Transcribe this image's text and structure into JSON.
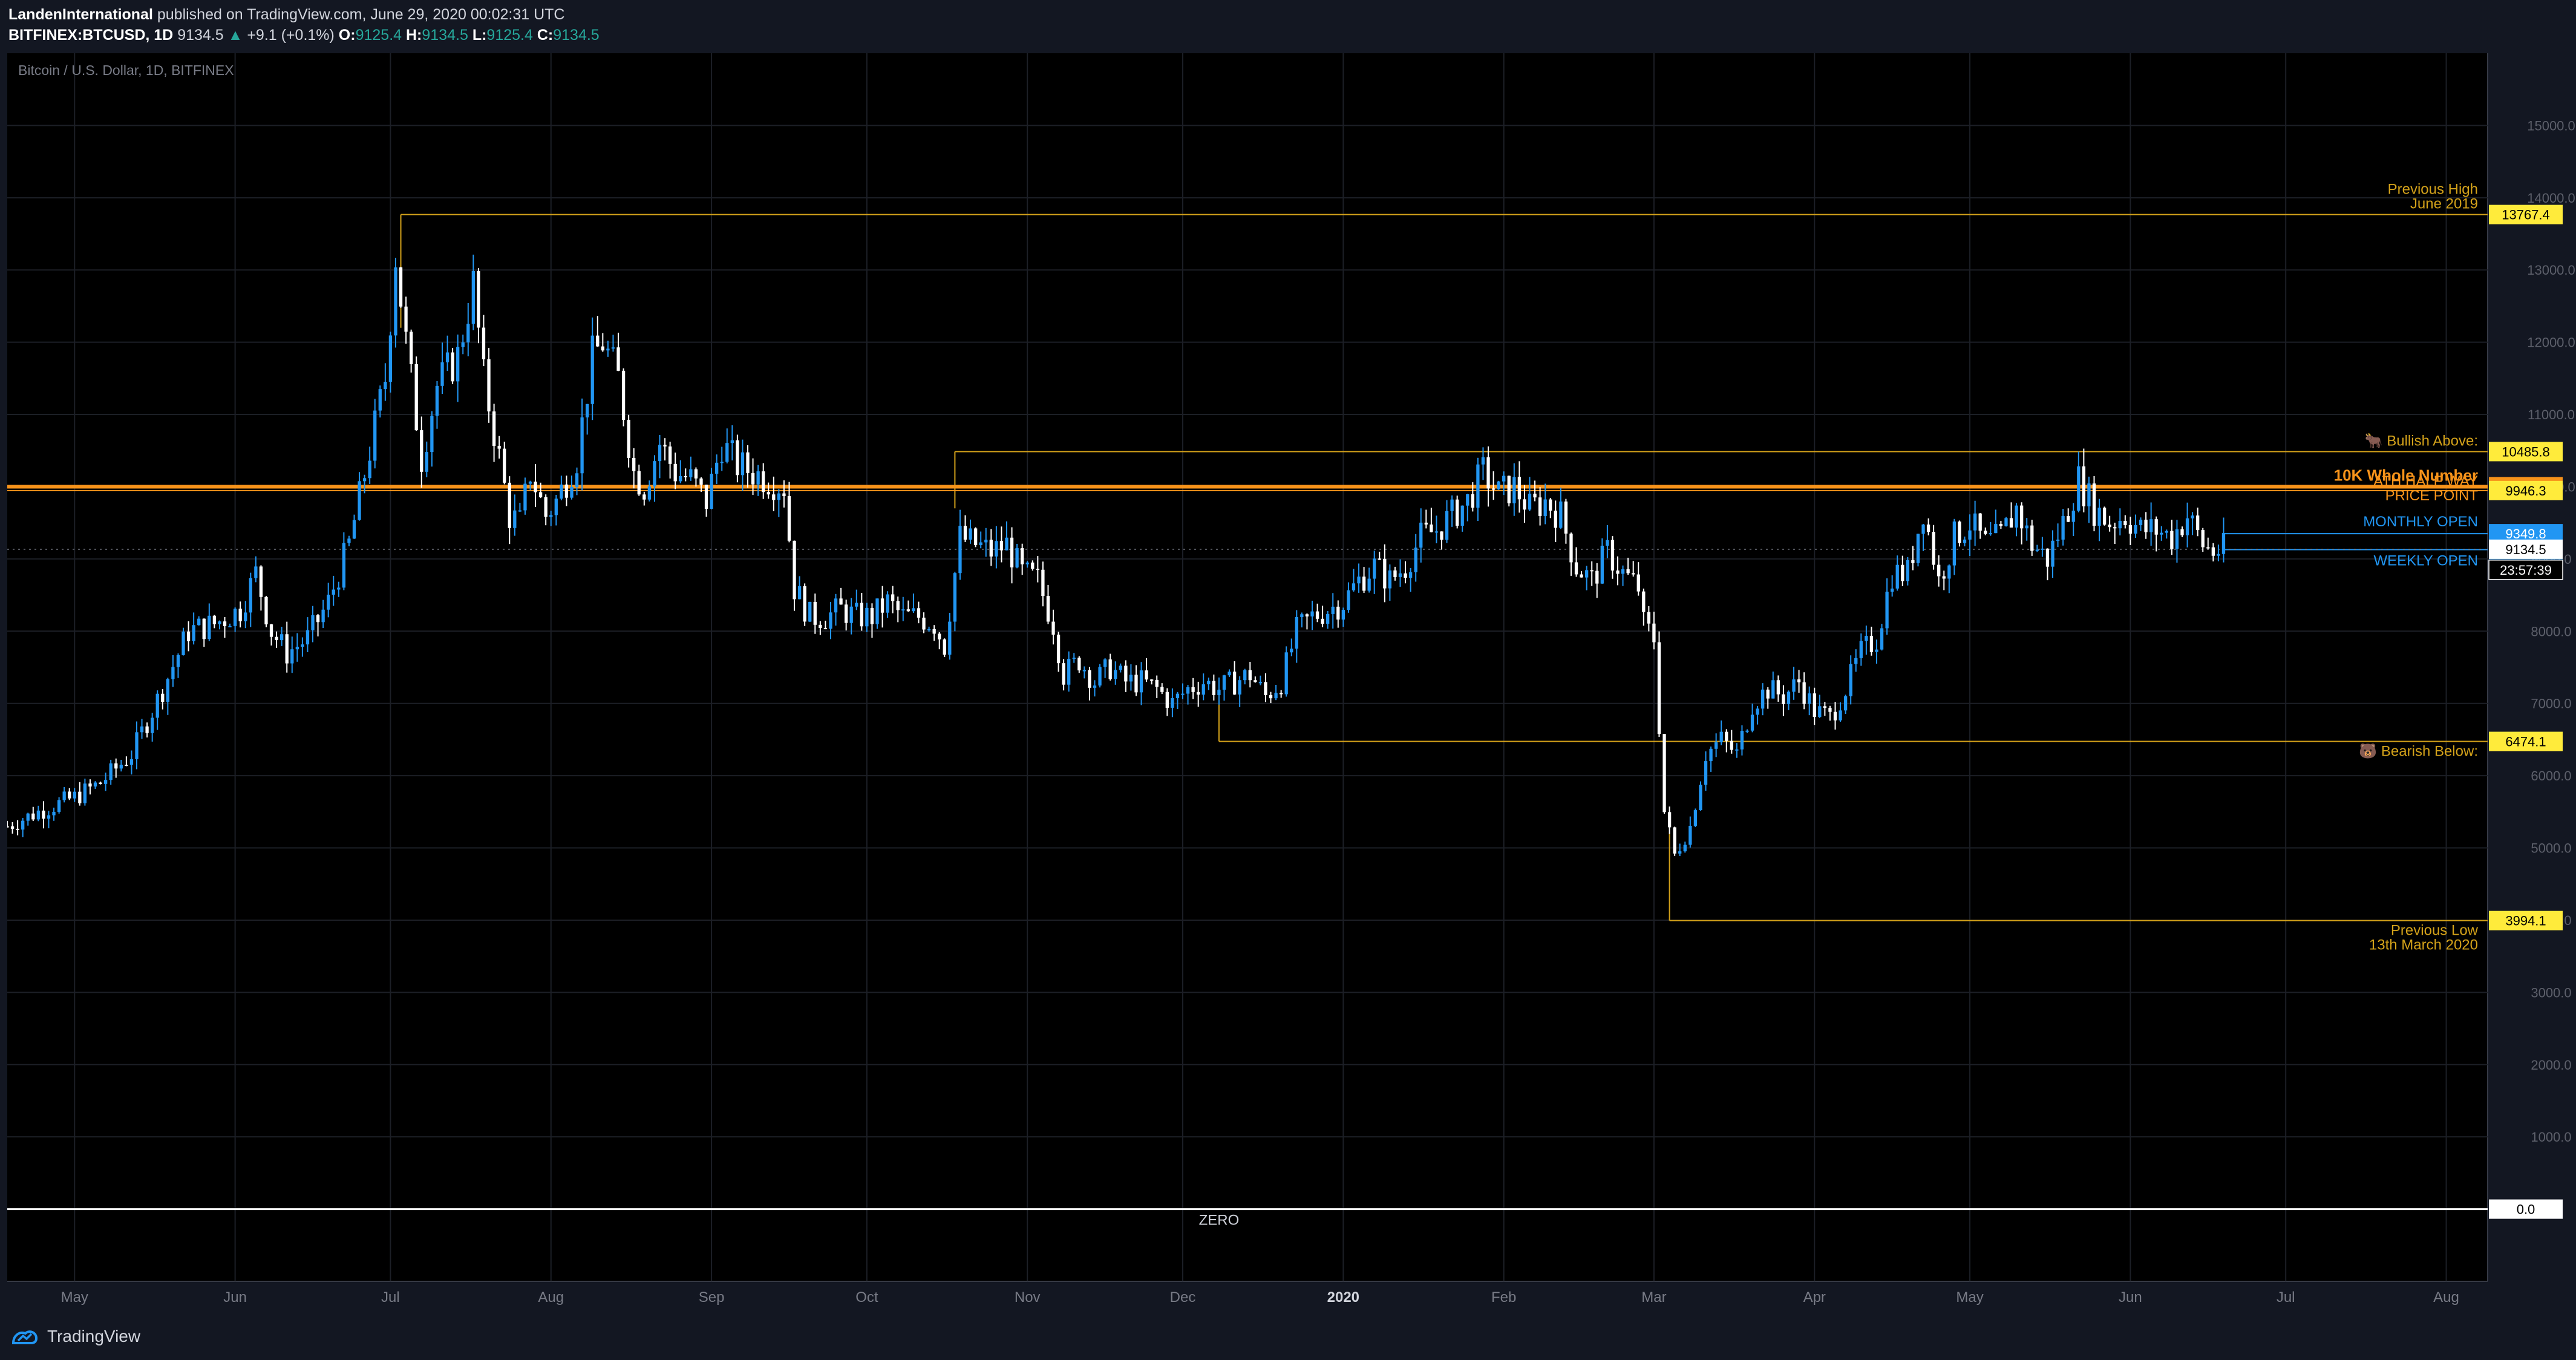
{
  "header": {
    "author": "LandenInternational",
    "published": "published on TradingView.com, June 29, 2020 00:02:31 UTC",
    "symbol": "BITFINEX:BTCUSD, 1D",
    "last": "9134.5",
    "change": "+9.1 (+0.1%)",
    "o_label": "O:",
    "o_val": "9125.4",
    "h_label": "H:",
    "h_val": "9134.5",
    "l_label": "L:",
    "l_val": "9125.4",
    "c_label": "C:",
    "c_val": "9134.5"
  },
  "footer": {
    "brand": "TradingView"
  },
  "chart_data": {
    "type": "candlestick",
    "title": "Bitcoin / U.S. Dollar, 1D, BITFINEX",
    "ylim": [
      -1000,
      16000
    ],
    "y_ticks": [
      "1000.0",
      "2000.0",
      "3000.0",
      "4000.0",
      "5000.0",
      "6000.0",
      "7000.0",
      "8000.0",
      "9000.0",
      "10000.0",
      "11000.0",
      "12000.0",
      "13000.0",
      "14000.0",
      "15000.0"
    ],
    "x_ticks": [
      {
        "label": "May",
        "day": 25
      },
      {
        "label": "Jun",
        "day": 56
      },
      {
        "label": "Jul",
        "day": 86
      },
      {
        "label": "Aug",
        "day": 117
      },
      {
        "label": "Sep",
        "day": 148
      },
      {
        "label": "Oct",
        "day": 178
      },
      {
        "label": "Nov",
        "day": 209
      },
      {
        "label": "Dec",
        "day": 239
      },
      {
        "label": "2020",
        "day": 270
      },
      {
        "label": "Feb",
        "day": 301
      },
      {
        "label": "Mar",
        "day": 330
      },
      {
        "label": "Apr",
        "day": 361
      },
      {
        "label": "May",
        "day": 391
      },
      {
        "label": "Jun",
        "day": 422
      },
      {
        "label": "Jul",
        "day": 452
      },
      {
        "label": "Aug",
        "day": 483
      }
    ],
    "x_range": [
      12,
      491
    ],
    "price_path": [
      [
        12,
        5300
      ],
      [
        18,
        5500
      ],
      [
        25,
        5700
      ],
      [
        30,
        5900
      ],
      [
        36,
        6300
      ],
      [
        42,
        7200
      ],
      [
        47,
        8000
      ],
      [
        52,
        8100
      ],
      [
        57,
        8300
      ],
      [
        60,
        8800
      ],
      [
        63,
        8000
      ],
      [
        66,
        7700
      ],
      [
        70,
        7900
      ],
      [
        74,
        8400
      ],
      [
        78,
        9200
      ],
      [
        82,
        10500
      ],
      [
        85,
        11500
      ],
      [
        87,
        13200
      ],
      [
        89,
        12000
      ],
      [
        92,
        10400
      ],
      [
        95,
        11400
      ],
      [
        99,
        11800
      ],
      [
        102,
        12800
      ],
      [
        104,
        11500
      ],
      [
        107,
        10400
      ],
      [
        109,
        9600
      ],
      [
        111,
        9500
      ],
      [
        113,
        10200
      ],
      [
        116,
        9600
      ],
      [
        118,
        9800
      ],
      [
        122,
        10400
      ],
      [
        125,
        11800
      ],
      [
        127,
        12000
      ],
      [
        130,
        11500
      ],
      [
        133,
        10200
      ],
      [
        135,
        10000
      ],
      [
        138,
        10600
      ],
      [
        141,
        10200
      ],
      [
        144,
        10100
      ],
      [
        147,
        9800
      ],
      [
        150,
        10600
      ],
      [
        153,
        10300
      ],
      [
        156,
        10200
      ],
      [
        159,
        10100
      ],
      [
        162,
        10000
      ],
      [
        164,
        8600
      ],
      [
        167,
        8200
      ],
      [
        170,
        8200
      ],
      [
        173,
        8300
      ],
      [
        176,
        8200
      ],
      [
        179,
        8200
      ],
      [
        182,
        8400
      ],
      [
        185,
        8200
      ],
      [
        188,
        8200
      ],
      [
        191,
        8100
      ],
      [
        193,
        7800
      ],
      [
        196,
        9300
      ],
      [
        199,
        9200
      ],
      [
        202,
        9100
      ],
      [
        205,
        9200
      ],
      [
        208,
        8800
      ],
      [
        211,
        8700
      ],
      [
        214,
        8100
      ],
      [
        216,
        7400
      ],
      [
        219,
        7600
      ],
      [
        222,
        7300
      ],
      [
        225,
        7500
      ],
      [
        228,
        7300
      ],
      [
        231,
        7300
      ],
      [
        234,
        7200
      ],
      [
        237,
        7000
      ],
      [
        240,
        7200
      ],
      [
        243,
        7300
      ],
      [
        246,
        7200
      ],
      [
        249,
        7300
      ],
      [
        252,
        7400
      ],
      [
        255,
        7100
      ],
      [
        258,
        7300
      ],
      [
        261,
        8000
      ],
      [
        264,
        8200
      ],
      [
        267,
        8300
      ],
      [
        270,
        8400
      ],
      [
        273,
        8700
      ],
      [
        276,
        8900
      ],
      [
        279,
        8700
      ],
      [
        282,
        8900
      ],
      [
        285,
        9300
      ],
      [
        288,
        9400
      ],
      [
        291,
        9600
      ],
      [
        294,
        9800
      ],
      [
        297,
        10200
      ],
      [
        300,
        9900
      ],
      [
        303,
        10000
      ],
      [
        306,
        9700
      ],
      [
        309,
        9800
      ],
      [
        312,
        9600
      ],
      [
        315,
        8900
      ],
      [
        318,
        8700
      ],
      [
        321,
        9100
      ],
      [
        324,
        8800
      ],
      [
        327,
        8600
      ],
      [
        328,
        8100
      ],
      [
        330,
        7900
      ],
      [
        332,
        5500
      ],
      [
        334,
        4900
      ],
      [
        337,
        5300
      ],
      [
        340,
        6300
      ],
      [
        343,
        6500
      ],
      [
        346,
        6300
      ],
      [
        349,
        7000
      ],
      [
        352,
        7200
      ],
      [
        355,
        7100
      ],
      [
        358,
        7300
      ],
      [
        361,
        6900
      ],
      [
        364,
        6800
      ],
      [
        367,
        7200
      ],
      [
        370,
        7700
      ],
      [
        373,
        7900
      ],
      [
        376,
        8800
      ],
      [
        379,
        8800
      ],
      [
        382,
        9700
      ],
      [
        385,
        8700
      ],
      [
        388,
        9300
      ],
      [
        391,
        9500
      ],
      [
        394,
        9200
      ],
      [
        397,
        9300
      ],
      [
        400,
        9700
      ],
      [
        403,
        9200
      ],
      [
        406,
        9000
      ],
      [
        409,
        9500
      ],
      [
        412,
        10100
      ],
      [
        415,
        9700
      ],
      [
        418,
        9500
      ],
      [
        421,
        9600
      ],
      [
        424,
        9400
      ],
      [
        427,
        9400
      ],
      [
        430,
        9300
      ],
      [
        433,
        9600
      ],
      [
        436,
        9200
      ],
      [
        438,
        9100
      ],
      [
        440,
        9134
      ]
    ],
    "levels": [
      {
        "name": "previous-high-level",
        "value": 13767.4,
        "label": "13767.4",
        "text": "Previous High",
        "text2": "June 2019",
        "color": "#d4a21a",
        "tag_bg": "#ffeb3b",
        "tag_fg": "#000000",
        "start": 88
      },
      {
        "name": "bullish-above-level",
        "value": 10485.8,
        "label": "10485.8",
        "text": "🐂 Bullish Above:",
        "text2": "",
        "color": "#d4a21a",
        "tag_bg": "#ffeb3b",
        "tag_fg": "#000000",
        "start": 195
      },
      {
        "name": "ten-k-level",
        "value": 10000.0,
        "label": "10000.0",
        "text": "10K Whole Number",
        "text2": "",
        "color": "#f7931a",
        "tag_bg": "#f7931a",
        "tag_fg": "#000000",
        "start": 12
      },
      {
        "name": "ath-half-way-level",
        "value": 9946.3,
        "label": "9946.3",
        "text": "ATH HALF WAY",
        "text2": "PRICE POINT",
        "color": "#f7931a",
        "tag_bg": "#ffeb3b",
        "tag_fg": "#000000",
        "start": 12
      },
      {
        "name": "monthly-open-level",
        "value": 9349.8,
        "label": "9349.8",
        "text": "MONTHLY OPEN",
        "text2": "",
        "color": "#2196f3",
        "tag_bg": "#2196f3",
        "tag_fg": "#ffffff",
        "start": 440
      },
      {
        "name": "weekly-open-level",
        "value": 9128.6,
        "label": "9128.6",
        "text": "WEEKLY OPEN",
        "text2": "",
        "color": "#2196f3",
        "tag_bg": "#2196f3",
        "tag_fg": "#ffffff",
        "start": 440
      },
      {
        "name": "bearish-below-level",
        "value": 6474.1,
        "label": "6474.1",
        "text": "🐻 Bearish Below:",
        "text2": "",
        "color": "#d4a21a",
        "tag_bg": "#ffeb3b",
        "tag_fg": "#000000",
        "start": 246
      },
      {
        "name": "previous-low-level",
        "value": 3994.1,
        "label": "3994.1",
        "text": "Previous Low",
        "text2": "13th March 2020",
        "color": "#d4a21a",
        "tag_bg": "#ffeb3b",
        "tag_fg": "#000000",
        "start": 333
      },
      {
        "name": "zero-level",
        "value": 0.0,
        "label": "0.0",
        "text": "ZERO",
        "text2": "",
        "color": "#ffffff",
        "tag_bg": "#ffffff",
        "tag_fg": "#000000",
        "start": 12
      }
    ],
    "last_price": {
      "label": "9134.5",
      "countdown": "23:57:39"
    }
  }
}
